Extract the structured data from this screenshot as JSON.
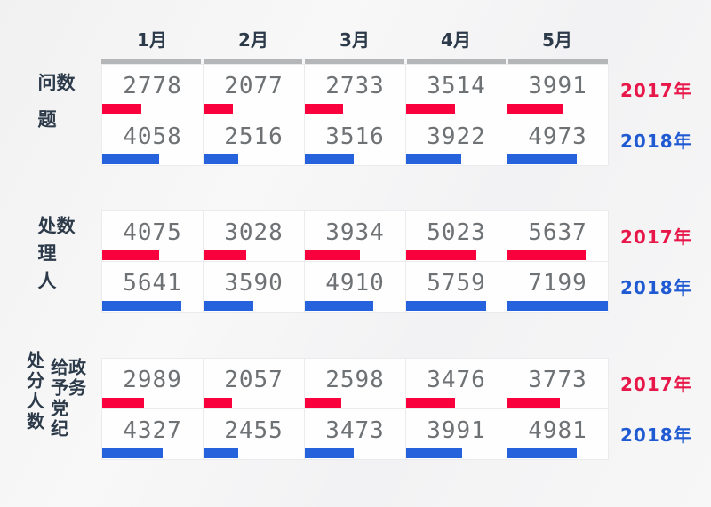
{
  "months": [
    "1月",
    "2月",
    "3月",
    "4月",
    "5月"
  ],
  "colors": {
    "bar_2017": "#f8013d",
    "bar_2018": "#2562dc",
    "label_2017": "#e8174a",
    "label_2018": "#1f5ad2",
    "heading_text": "#2c3a49",
    "value_text": "#6f7275",
    "header_rule": "#b5b6b7"
  },
  "scale_max": 7199,
  "chart_data": [
    {
      "type": "bar",
      "title": "问题数",
      "categories": [
        "1月",
        "2月",
        "3月",
        "4月",
        "5月"
      ],
      "legend_position": "right",
      "has_header_rule": true,
      "series": [
        {
          "name": "2017年",
          "color": "#f8013d",
          "values": [
            2778,
            2077,
            2733,
            3514,
            3991
          ]
        },
        {
          "name": "2018年",
          "color": "#2562dc",
          "values": [
            4058,
            2516,
            3516,
            3922,
            4973
          ]
        }
      ]
    },
    {
      "type": "bar",
      "title": "处理人数",
      "categories": [
        "1月",
        "2月",
        "3月",
        "4月",
        "5月"
      ],
      "legend_position": "right",
      "has_header_rule": false,
      "series": [
        {
          "name": "2017年",
          "color": "#f8013d",
          "values": [
            4075,
            3028,
            3934,
            5023,
            5637
          ]
        },
        {
          "name": "2018年",
          "color": "#2562dc",
          "values": [
            5641,
            3590,
            4910,
            5759,
            7199
          ]
        }
      ]
    },
    {
      "type": "bar",
      "title": "处分人数",
      "subtitle": "给予党纪政务",
      "categories": [
        "1月",
        "2月",
        "3月",
        "4月",
        "5月"
      ],
      "legend_position": "right",
      "has_header_rule": false,
      "series": [
        {
          "name": "2017年",
          "color": "#f8013d",
          "values": [
            2989,
            2057,
            2598,
            3476,
            3773
          ]
        },
        {
          "name": "2018年",
          "color": "#2562dc",
          "values": [
            4327,
            2455,
            3473,
            3991,
            4981
          ]
        }
      ]
    }
  ]
}
